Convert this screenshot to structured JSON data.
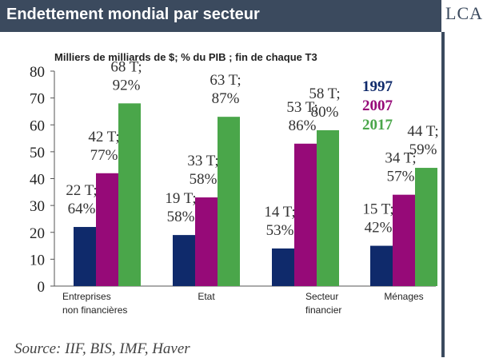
{
  "header": {
    "title": "Endettement mondial par secteur",
    "logo": "LCA"
  },
  "source": "Source: IIF, BIS, IMF, Haver",
  "chart_data": {
    "type": "bar",
    "title": "Endettement mondial par secteur",
    "subtitle": "Milliers de milliards de $; % du PIB ; fin de chaque T3",
    "categories": [
      "Entreprises\nnon financières",
      "Etat",
      "Secteur\nfinancier",
      "Ménages"
    ],
    "series": [
      {
        "name": "1997",
        "color": "#0f2a6b",
        "values": [
          22,
          19,
          14,
          15
        ],
        "labels": [
          "22 T;\n64%",
          "19 T;\n58%",
          "14 T;\n53%",
          "15 T;\n42%"
        ]
      },
      {
        "name": "2007",
        "color": "#960a78",
        "values": [
          42,
          33,
          53,
          34
        ],
        "labels": [
          "42 T;\n77%",
          "33 T;\n58%",
          "53 T;\n86%",
          "34 T;\n57%"
        ]
      },
      {
        "name": "2017",
        "color": "#4aa64a",
        "values": [
          68,
          63,
          58,
          44
        ],
        "labels": [
          "68 T;\n92%",
          "63 T;\n87%",
          "58 T;\n80%",
          "44 T;\n59%"
        ]
      }
    ],
    "ylim": [
      0,
      80
    ],
    "yticks": [
      0,
      10,
      20,
      30,
      40,
      50,
      60,
      70,
      80
    ],
    "xlabel": "",
    "ylabel": "",
    "grid": false,
    "legend": "top-right"
  }
}
